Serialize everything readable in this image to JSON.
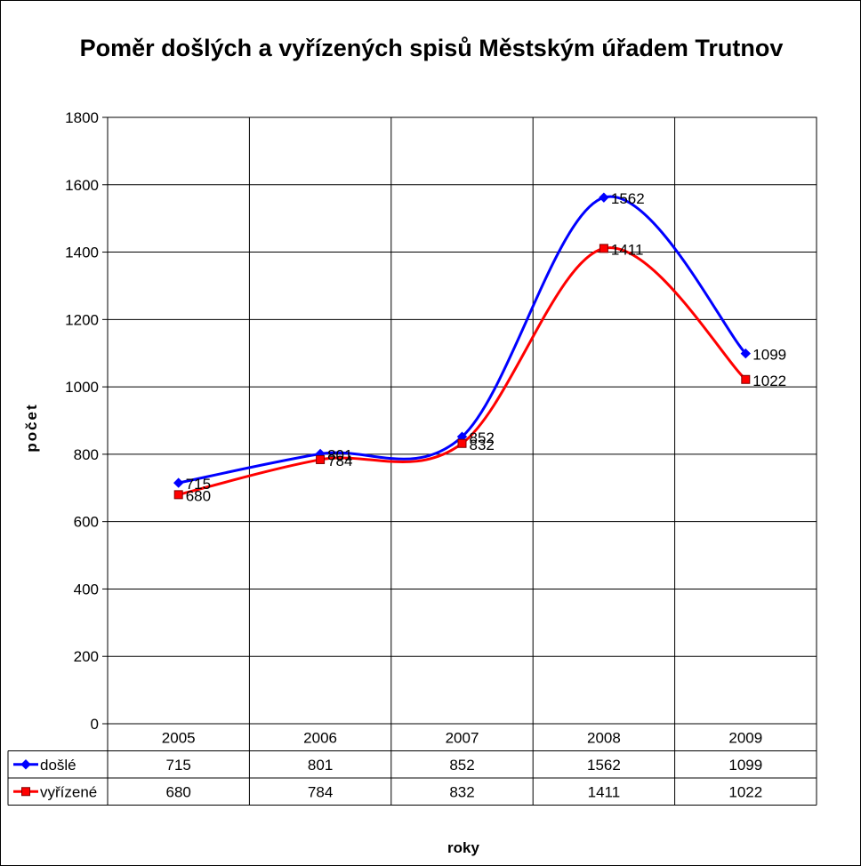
{
  "chart_data": {
    "type": "line",
    "title": "Poměr došlých a vyřízených spisů Městským úřadem Trutnov",
    "xlabel": "roky",
    "ylabel": "počet",
    "categories": [
      "2005",
      "2006",
      "2007",
      "2008",
      "2009"
    ],
    "ylim": [
      0,
      1800
    ],
    "yticks": [
      0,
      200,
      400,
      600,
      800,
      1000,
      1200,
      1400,
      1600,
      1800
    ],
    "grid": true,
    "legend": "data-table",
    "series": [
      {
        "name": "došlé",
        "values": [
          715,
          801,
          852,
          1562,
          1099
        ],
        "color": "#0000ff",
        "marker": "diamond"
      },
      {
        "name": "vyřízené",
        "values": [
          680,
          784,
          832,
          1411,
          1022
        ],
        "color": "#ff0000",
        "marker": "square"
      }
    ]
  }
}
